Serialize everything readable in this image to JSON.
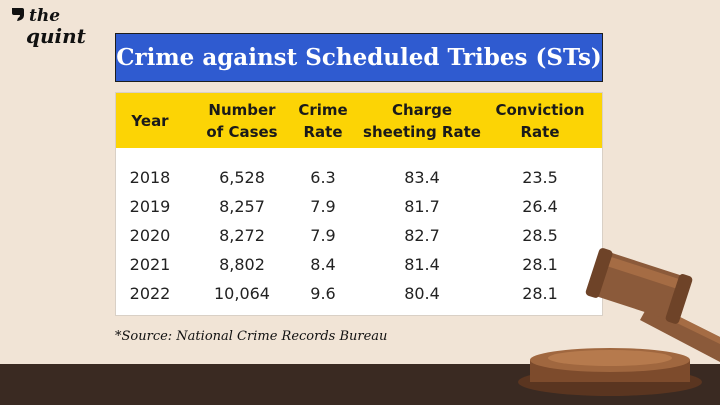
{
  "brand": {
    "line1": "the",
    "line2": "quint"
  },
  "title": "Crime against Scheduled Tribes (STs)",
  "table": {
    "headers": [
      "Year",
      "Number of Cases",
      "Crime Rate",
      "Charge sheeting Rate",
      "Conviction Rate"
    ],
    "header_lines": [
      [
        "Year"
      ],
      [
        "Number",
        "of Cases"
      ],
      [
        "Crime",
        "Rate"
      ],
      [
        "Charge",
        "sheeting Rate"
      ],
      [
        "Conviction",
        "Rate"
      ]
    ],
    "rows": [
      [
        "2018",
        "6,528",
        "6.3",
        "83.4",
        "23.5"
      ],
      [
        "2019",
        "8,257",
        "7.9",
        "81.7",
        "26.4"
      ],
      [
        "2020",
        "8,272",
        "7.9",
        "82.7",
        "28.5"
      ],
      [
        "2021",
        "8,802",
        "8.4",
        "81.4",
        "28.1"
      ],
      [
        "2022",
        "10,064",
        "9.6",
        "80.4",
        "28.1"
      ]
    ]
  },
  "source": "*Source: National Crime Records Bureau",
  "colors": {
    "background": "#f1e4d6",
    "title_banner": "#2f5bd0",
    "header_row": "#fcd405",
    "floor": "#3a2a22",
    "gavel_wood": "#8b5a3a"
  },
  "icons": {
    "logo": "quote-mark-icon",
    "decoration": "gavel-icon"
  }
}
